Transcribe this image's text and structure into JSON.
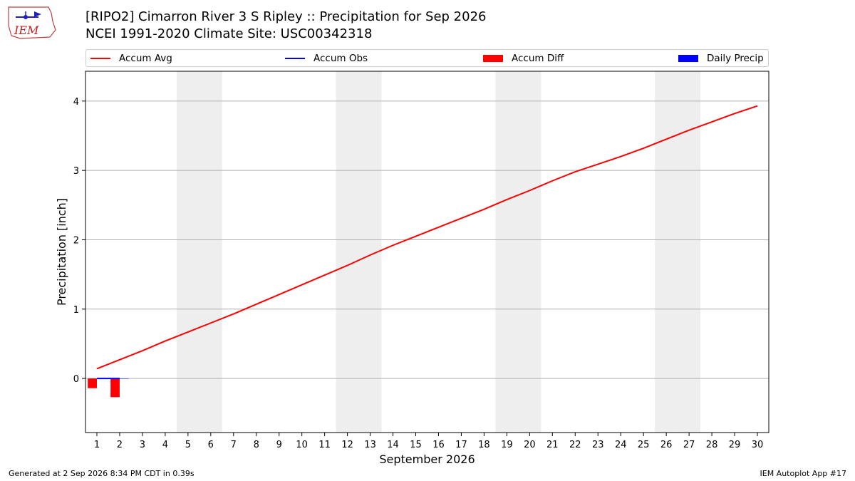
{
  "header": {
    "logo_text": "IEM",
    "title_line1": "[RIPO2] Cimarron River 3 S Ripley :: Precipitation for Sep 2026",
    "title_line2": "NCEI 1991-2020 Climate Site: USC00342318"
  },
  "legend": {
    "accum_avg": "Accum Avg",
    "accum_obs": "Accum Obs",
    "accum_diff": "Accum Diff",
    "daily_precip": "Daily Precip"
  },
  "colors": {
    "accum_avg": "#ff0000",
    "accum_obs": "#0000ff",
    "accum_diff": "#ff0000",
    "daily_precip": "#0000ff",
    "weekend_band": "#eeeeee",
    "grid": "#b0b0b0"
  },
  "chart_data": {
    "type": "line",
    "xlabel": "September 2026",
    "ylabel": "Precipitation [inch]",
    "x": [
      1,
      2,
      3,
      4,
      5,
      6,
      7,
      8,
      9,
      10,
      11,
      12,
      13,
      14,
      15,
      16,
      17,
      18,
      19,
      20,
      21,
      22,
      23,
      24,
      25,
      26,
      27,
      28,
      29,
      30
    ],
    "xlim": [
      0.5,
      30.5
    ],
    "ylim": [
      -0.78,
      4.43
    ],
    "yticks": [
      0,
      1,
      2,
      3,
      4
    ],
    "grid": "horizontal",
    "legend_position": "top",
    "weekend_days": [
      5,
      6,
      12,
      13,
      19,
      20,
      26,
      27
    ],
    "series": [
      {
        "name": "Accum Avg",
        "kind": "line",
        "values": [
          0.14,
          0.27,
          0.4,
          0.54,
          0.67,
          0.8,
          0.93,
          1.07,
          1.21,
          1.35,
          1.49,
          1.63,
          1.78,
          1.92,
          2.05,
          2.18,
          2.31,
          2.44,
          2.58,
          2.71,
          2.85,
          2.98,
          3.09,
          3.2,
          3.32,
          3.45,
          3.58,
          3.7,
          3.82,
          3.93
        ]
      },
      {
        "name": "Accum Obs",
        "kind": "line",
        "x": [
          1,
          2
        ],
        "values": [
          0.0,
          0.0
        ]
      },
      {
        "name": "Accum Diff",
        "kind": "bar",
        "x": [
          1,
          2
        ],
        "values": [
          -0.14,
          -0.27
        ]
      },
      {
        "name": "Daily Precip",
        "kind": "bar",
        "x": [
          1,
          2
        ],
        "values": [
          0.0,
          0.0
        ]
      }
    ]
  },
  "footer": {
    "generated": "Generated at 2 Sep 2026 8:34 PM CDT in 0.39s",
    "app": "IEM Autoplot App #17"
  }
}
